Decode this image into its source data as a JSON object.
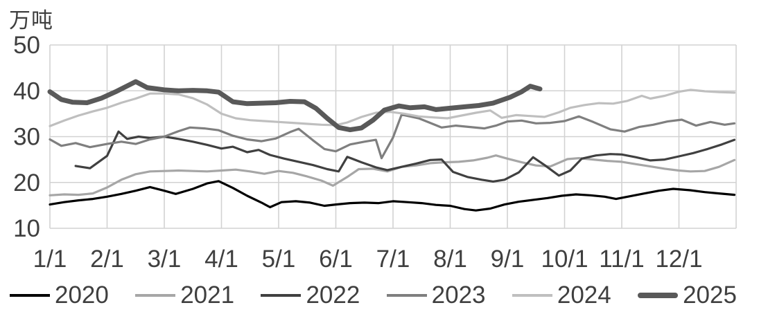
{
  "title": "万吨",
  "colors": {
    "grid": "#d2d2d2",
    "text": "#3f3f3f",
    "background": "#ffffff"
  },
  "chart_data": {
    "type": "line",
    "title": "",
    "unit_label": "万吨",
    "xlabel": "",
    "ylabel": "万吨",
    "ylim": [
      10,
      50
    ],
    "y_ticks": [
      50,
      40,
      30,
      20,
      10
    ],
    "x_tick_labels": [
      "1/1",
      "2/1",
      "3/1",
      "4/1",
      "5/1",
      "6/1",
      "7/1",
      "8/1",
      "9/1",
      "10/1",
      "11/1",
      "12/1"
    ],
    "x_range_months": [
      0,
      12
    ],
    "grid": true,
    "legend_position": "bottom",
    "note_x_units": "x = months since Jan 1 (0 = 1/1, 11 = 12/1)",
    "series": [
      {
        "name": "2020",
        "color": "#000000",
        "thick": false,
        "points": [
          [
            0,
            15.2
          ],
          [
            0.25,
            15.7
          ],
          [
            0.5,
            16.1
          ],
          [
            0.75,
            16.4
          ],
          [
            1,
            16.9
          ],
          [
            1.25,
            17.5
          ],
          [
            1.5,
            18.2
          ],
          [
            1.75,
            19.0
          ],
          [
            2,
            18.2
          ],
          [
            2.2,
            17.5
          ],
          [
            2.5,
            18.6
          ],
          [
            2.75,
            19.8
          ],
          [
            2.95,
            20.3
          ],
          [
            3.2,
            18.8
          ],
          [
            3.45,
            17.1
          ],
          [
            3.7,
            15.6
          ],
          [
            3.85,
            14.6
          ],
          [
            4.05,
            15.7
          ],
          [
            4.3,
            15.9
          ],
          [
            4.55,
            15.6
          ],
          [
            4.8,
            14.9
          ],
          [
            5,
            15.2
          ],
          [
            5.25,
            15.5
          ],
          [
            5.5,
            15.6
          ],
          [
            5.75,
            15.5
          ],
          [
            6,
            15.9
          ],
          [
            6.25,
            15.7
          ],
          [
            6.5,
            15.5
          ],
          [
            6.75,
            15.1
          ],
          [
            7,
            14.9
          ],
          [
            7.25,
            14.2
          ],
          [
            7.45,
            13.9
          ],
          [
            7.7,
            14.3
          ],
          [
            7.95,
            15.2
          ],
          [
            8.2,
            15.8
          ],
          [
            8.45,
            16.2
          ],
          [
            8.7,
            16.6
          ],
          [
            8.95,
            17.1
          ],
          [
            9.2,
            17.4
          ],
          [
            9.45,
            17.2
          ],
          [
            9.7,
            16.9
          ],
          [
            9.9,
            16.4
          ],
          [
            10.15,
            17.0
          ],
          [
            10.4,
            17.6
          ],
          [
            10.65,
            18.2
          ],
          [
            10.9,
            18.6
          ],
          [
            11.2,
            18.3
          ],
          [
            11.45,
            17.9
          ],
          [
            11.7,
            17.6
          ],
          [
            11.97,
            17.3
          ]
        ]
      },
      {
        "name": "2021",
        "color": "#a6a6a6",
        "thick": false,
        "points": [
          [
            0,
            17.2
          ],
          [
            0.25,
            17.4
          ],
          [
            0.5,
            17.3
          ],
          [
            0.75,
            17.6
          ],
          [
            1,
            18.9
          ],
          [
            1.25,
            20.6
          ],
          [
            1.5,
            21.8
          ],
          [
            1.75,
            22.4
          ],
          [
            2,
            22.5
          ],
          [
            2.25,
            22.6
          ],
          [
            2.5,
            22.5
          ],
          [
            2.75,
            22.4
          ],
          [
            3,
            22.6
          ],
          [
            3.25,
            22.8
          ],
          [
            3.5,
            22.4
          ],
          [
            3.75,
            21.9
          ],
          [
            4,
            22.5
          ],
          [
            4.25,
            22.1
          ],
          [
            4.5,
            21.3
          ],
          [
            4.75,
            20.4
          ],
          [
            4.95,
            19.3
          ],
          [
            5.2,
            21.2
          ],
          [
            5.4,
            22.9
          ],
          [
            5.65,
            23.0
          ],
          [
            5.9,
            22.4
          ],
          [
            6.15,
            23.4
          ],
          [
            6.4,
            23.7
          ],
          [
            6.65,
            24.2
          ],
          [
            6.9,
            24.4
          ],
          [
            7.15,
            24.5
          ],
          [
            7.4,
            24.8
          ],
          [
            7.65,
            25.4
          ],
          [
            7.8,
            25.9
          ],
          [
            8,
            25.2
          ],
          [
            8.25,
            24.4
          ],
          [
            8.5,
            23.7
          ],
          [
            8.75,
            23.5
          ],
          [
            8.9,
            24.3
          ],
          [
            9.05,
            25.1
          ],
          [
            9.25,
            25.3
          ],
          [
            9.5,
            25.0
          ],
          [
            9.75,
            24.7
          ],
          [
            10,
            24.5
          ],
          [
            10.25,
            24.0
          ],
          [
            10.5,
            23.5
          ],
          [
            10.75,
            23.0
          ],
          [
            11,
            22.6
          ],
          [
            11.2,
            22.4
          ],
          [
            11.45,
            22.5
          ],
          [
            11.7,
            23.4
          ],
          [
            11.97,
            24.9
          ]
        ]
      },
      {
        "name": "2022",
        "color": "#404040",
        "thick": false,
        "points": [
          [
            0.45,
            23.6
          ],
          [
            0.7,
            23.1
          ],
          [
            1,
            25.8
          ],
          [
            1.2,
            31.1
          ],
          [
            1.35,
            29.5
          ],
          [
            1.55,
            30.0
          ],
          [
            1.75,
            29.7
          ],
          [
            2,
            30.0
          ],
          [
            2.25,
            29.5
          ],
          [
            2.5,
            28.9
          ],
          [
            2.75,
            28.2
          ],
          [
            3,
            27.4
          ],
          [
            3.2,
            27.8
          ],
          [
            3.45,
            26.6
          ],
          [
            3.65,
            27.1
          ],
          [
            3.85,
            26.0
          ],
          [
            4.1,
            25.2
          ],
          [
            4.35,
            24.5
          ],
          [
            4.6,
            23.8
          ],
          [
            4.85,
            22.9
          ],
          [
            5.05,
            22.4
          ],
          [
            5.2,
            25.6
          ],
          [
            5.45,
            24.4
          ],
          [
            5.7,
            23.3
          ],
          [
            5.9,
            22.7
          ],
          [
            6.15,
            23.4
          ],
          [
            6.4,
            24.1
          ],
          [
            6.65,
            24.9
          ],
          [
            6.85,
            25.0
          ],
          [
            7.05,
            22.3
          ],
          [
            7.3,
            21.2
          ],
          [
            7.55,
            20.6
          ],
          [
            7.75,
            20.2
          ],
          [
            7.95,
            20.6
          ],
          [
            8.2,
            22.2
          ],
          [
            8.45,
            25.5
          ],
          [
            8.65,
            23.8
          ],
          [
            8.9,
            21.5
          ],
          [
            9.1,
            22.6
          ],
          [
            9.3,
            25.2
          ],
          [
            9.55,
            25.9
          ],
          [
            9.8,
            26.2
          ],
          [
            10,
            26.1
          ],
          [
            10.25,
            25.5
          ],
          [
            10.5,
            24.8
          ],
          [
            10.75,
            25.0
          ],
          [
            11,
            25.7
          ],
          [
            11.25,
            26.4
          ],
          [
            11.5,
            27.3
          ],
          [
            11.75,
            28.3
          ],
          [
            11.97,
            29.3
          ]
        ]
      },
      {
        "name": "2023",
        "color": "#7f7f7f",
        "thick": false,
        "points": [
          [
            0,
            29.4
          ],
          [
            0.2,
            28.0
          ],
          [
            0.45,
            28.6
          ],
          [
            0.7,
            27.7
          ],
          [
            1,
            28.4
          ],
          [
            1.25,
            28.9
          ],
          [
            1.5,
            28.4
          ],
          [
            1.75,
            29.4
          ],
          [
            2,
            30.0
          ],
          [
            2.25,
            31.2
          ],
          [
            2.45,
            32.0
          ],
          [
            2.7,
            31.8
          ],
          [
            2.95,
            31.4
          ],
          [
            3.2,
            30.2
          ],
          [
            3.45,
            29.4
          ],
          [
            3.7,
            29.0
          ],
          [
            3.95,
            29.6
          ],
          [
            4.2,
            31.0
          ],
          [
            4.35,
            31.7
          ],
          [
            4.6,
            29.2
          ],
          [
            4.8,
            27.3
          ],
          [
            5,
            26.8
          ],
          [
            5.25,
            28.3
          ],
          [
            5.5,
            28.9
          ],
          [
            5.7,
            29.3
          ],
          [
            5.8,
            25.3
          ],
          [
            6,
            29.8
          ],
          [
            6.15,
            34.8
          ],
          [
            6.45,
            34.0
          ],
          [
            6.65,
            33.0
          ],
          [
            6.85,
            32.0
          ],
          [
            7.1,
            32.4
          ],
          [
            7.35,
            32.1
          ],
          [
            7.6,
            31.8
          ],
          [
            7.8,
            32.4
          ],
          [
            8,
            33.3
          ],
          [
            8.25,
            33.5
          ],
          [
            8.5,
            32.9
          ],
          [
            8.75,
            33.0
          ],
          [
            9,
            33.4
          ],
          [
            9.25,
            34.4
          ],
          [
            9.5,
            33.2
          ],
          [
            9.8,
            31.6
          ],
          [
            10.05,
            31.1
          ],
          [
            10.3,
            32.1
          ],
          [
            10.55,
            32.6
          ],
          [
            10.8,
            33.3
          ],
          [
            11.05,
            33.7
          ],
          [
            11.3,
            32.4
          ],
          [
            11.55,
            33.2
          ],
          [
            11.8,
            32.6
          ],
          [
            11.97,
            32.9
          ]
        ]
      },
      {
        "name": "2024",
        "color": "#bfbfbf",
        "thick": false,
        "points": [
          [
            0,
            32.3
          ],
          [
            0.25,
            33.5
          ],
          [
            0.5,
            34.6
          ],
          [
            0.75,
            35.5
          ],
          [
            1,
            36.3
          ],
          [
            1.25,
            37.4
          ],
          [
            1.5,
            38.3
          ],
          [
            1.75,
            39.4
          ],
          [
            2,
            39.4
          ],
          [
            2.25,
            39.2
          ],
          [
            2.5,
            38.4
          ],
          [
            2.75,
            37.0
          ],
          [
            3,
            35.0
          ],
          [
            3.25,
            34.0
          ],
          [
            3.5,
            33.6
          ],
          [
            3.75,
            33.4
          ],
          [
            4,
            33.2
          ],
          [
            4.25,
            33.0
          ],
          [
            4.5,
            32.8
          ],
          [
            4.75,
            32.6
          ],
          [
            5,
            32.5
          ],
          [
            5.2,
            33.1
          ],
          [
            5.45,
            34.3
          ],
          [
            5.7,
            35.2
          ],
          [
            5.95,
            35.4
          ],
          [
            6.2,
            35.0
          ],
          [
            6.45,
            34.4
          ],
          [
            6.7,
            34.2
          ],
          [
            6.95,
            34.0
          ],
          [
            7.2,
            34.6
          ],
          [
            7.45,
            35.2
          ],
          [
            7.7,
            35.7
          ],
          [
            7.9,
            34.1
          ],
          [
            8.15,
            34.7
          ],
          [
            8.4,
            34.5
          ],
          [
            8.65,
            34.3
          ],
          [
            8.9,
            35.3
          ],
          [
            9.1,
            36.3
          ],
          [
            9.35,
            36.9
          ],
          [
            9.6,
            37.3
          ],
          [
            9.85,
            37.2
          ],
          [
            10.1,
            37.8
          ],
          [
            10.35,
            38.9
          ],
          [
            10.5,
            38.3
          ],
          [
            10.75,
            38.9
          ],
          [
            11,
            39.8
          ],
          [
            11.2,
            40.2
          ],
          [
            11.45,
            39.9
          ],
          [
            11.7,
            39.7
          ],
          [
            11.97,
            39.6
          ]
        ]
      },
      {
        "name": "2025",
        "color": "#595959",
        "thick": true,
        "points": [
          [
            0,
            39.8
          ],
          [
            0.2,
            38.1
          ],
          [
            0.4,
            37.5
          ],
          [
            0.65,
            37.4
          ],
          [
            0.9,
            38.4
          ],
          [
            1.15,
            39.8
          ],
          [
            1.5,
            42.0
          ],
          [
            1.7,
            40.7
          ],
          [
            2,
            40.2
          ],
          [
            2.25,
            40.0
          ],
          [
            2.5,
            40.1
          ],
          [
            2.75,
            40.0
          ],
          [
            2.95,
            39.7
          ],
          [
            3.2,
            37.6
          ],
          [
            3.45,
            37.2
          ],
          [
            3.7,
            37.3
          ],
          [
            3.95,
            37.4
          ],
          [
            4.2,
            37.7
          ],
          [
            4.45,
            37.6
          ],
          [
            4.65,
            36.2
          ],
          [
            4.85,
            34.0
          ],
          [
            5.05,
            32.0
          ],
          [
            5.25,
            31.5
          ],
          [
            5.45,
            31.9
          ],
          [
            5.65,
            33.6
          ],
          [
            5.85,
            35.8
          ],
          [
            6.1,
            36.7
          ],
          [
            6.3,
            36.3
          ],
          [
            6.55,
            36.5
          ],
          [
            6.75,
            35.9
          ],
          [
            7,
            36.2
          ],
          [
            7.25,
            36.5
          ],
          [
            7.5,
            36.8
          ],
          [
            7.75,
            37.3
          ],
          [
            8.05,
            38.6
          ],
          [
            8.25,
            39.8
          ],
          [
            8.4,
            41.0
          ],
          [
            8.57,
            40.4
          ]
        ]
      }
    ]
  }
}
